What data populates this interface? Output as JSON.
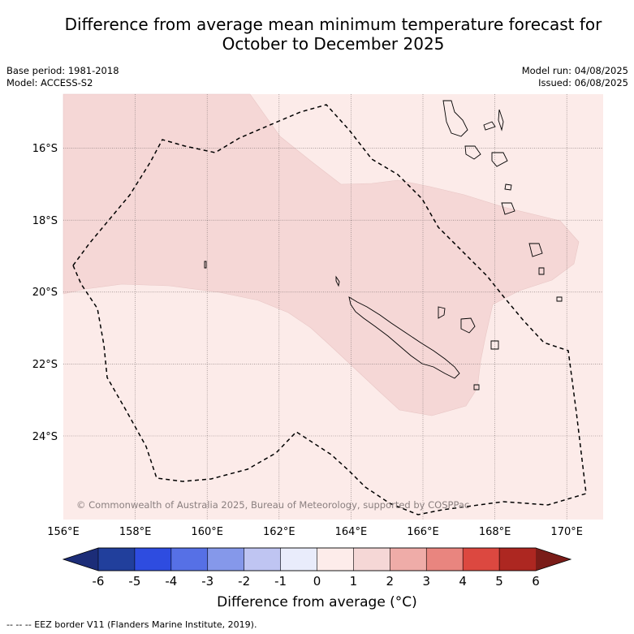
{
  "title": {
    "line1": "Difference from average mean minimum temperature forecast for",
    "line2": "October to December 2025"
  },
  "meta": {
    "base_period": "Base period: 1981-2018",
    "model": "Model: ACCESS-S2",
    "model_run": "Model run: 04/08/2025",
    "issued": "Issued: 06/08/2025"
  },
  "map": {
    "lon_labels": [
      "156°E",
      "158°E",
      "160°E",
      "162°E",
      "164°E",
      "166°E",
      "168°E",
      "170°E"
    ],
    "lat_labels": [
      "16°S",
      "18°S",
      "20°S",
      "22°S",
      "24°S"
    ],
    "copyright": "© Commonwealth of Australia 2025, Bureau of Meteorology, supported by COSPPac",
    "colors": {
      "band_0_1": "#fcebe9",
      "band_1_2": "#f5d7d6",
      "eez": "#000000",
      "land_outline": "#000000"
    }
  },
  "colorbar": {
    "ticks": [
      "-6",
      "-5",
      "-4",
      "-3",
      "-2",
      "-1",
      "0",
      "1",
      "2",
      "3",
      "4",
      "5",
      "6"
    ],
    "colors": [
      "#213f9c",
      "#2e4ce0",
      "#5670e6",
      "#8598ea",
      "#bfc5f2",
      "#e9ecfb",
      "#fdecea",
      "#f5d7d6",
      "#efaca8",
      "#e9857f",
      "#dc4840",
      "#ad2721"
    ],
    "under_color": "#1c2d78",
    "over_color": "#7a1c18",
    "label": "Difference from average (°C)"
  },
  "legend_note": "--  --  -- EEZ border V11 (Flanders Marine Institute, 2019)."
}
